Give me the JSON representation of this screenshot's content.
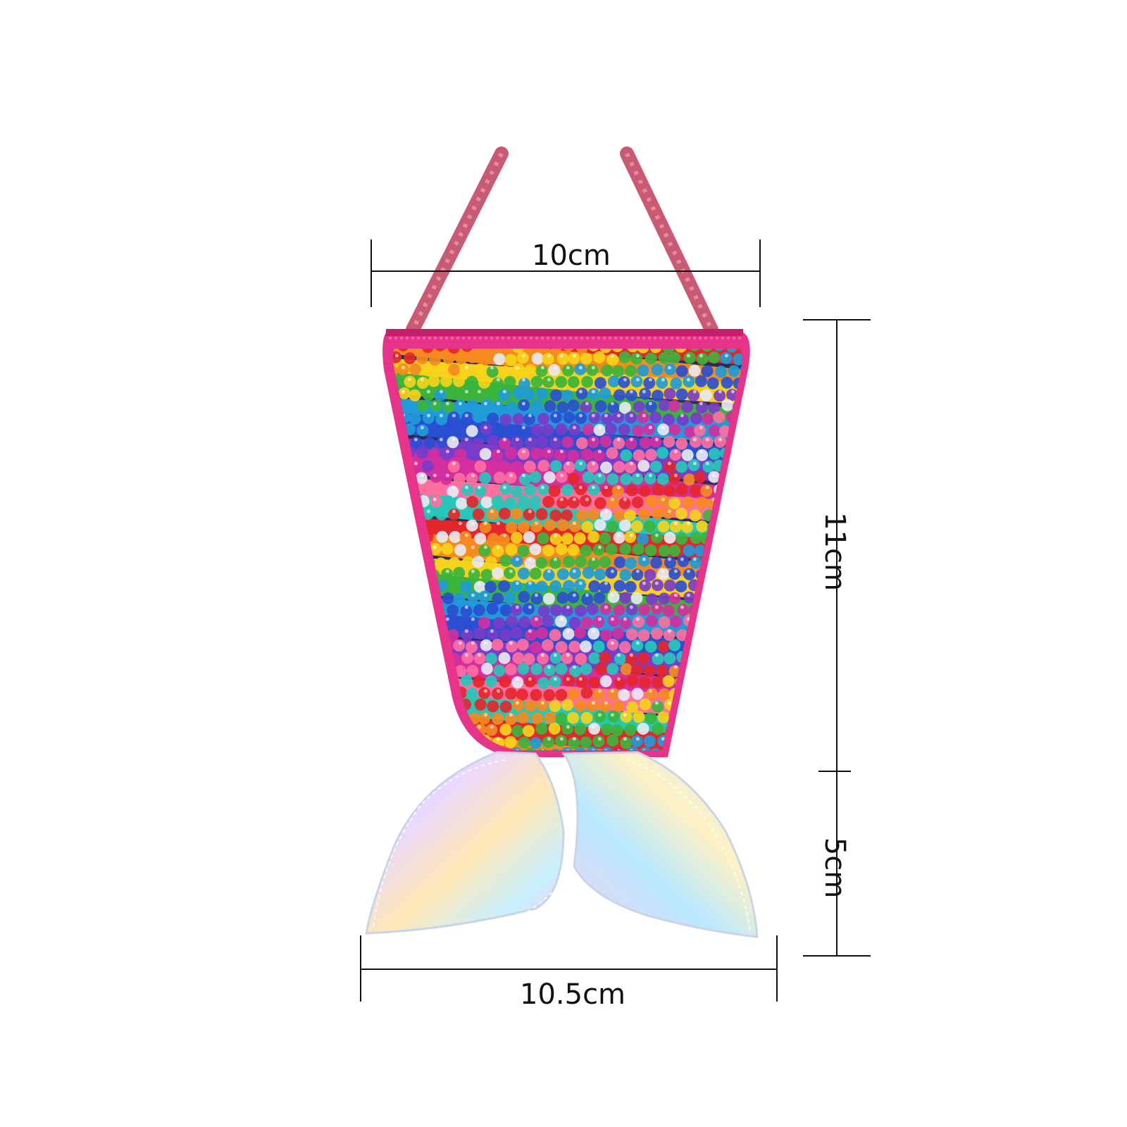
{
  "image": {
    "subject": "sequined mermaid-tail crossbody pouch with strap",
    "colors": {
      "background": "#ffffff",
      "strap": "#c95a74",
      "zipper_trim": "#e0307a",
      "dimension_lines": "#111111"
    }
  },
  "dimensions": {
    "top_width": "10cm",
    "body_height": "11cm",
    "tail_height": "5cm",
    "bottom_width": "10.5cm"
  }
}
